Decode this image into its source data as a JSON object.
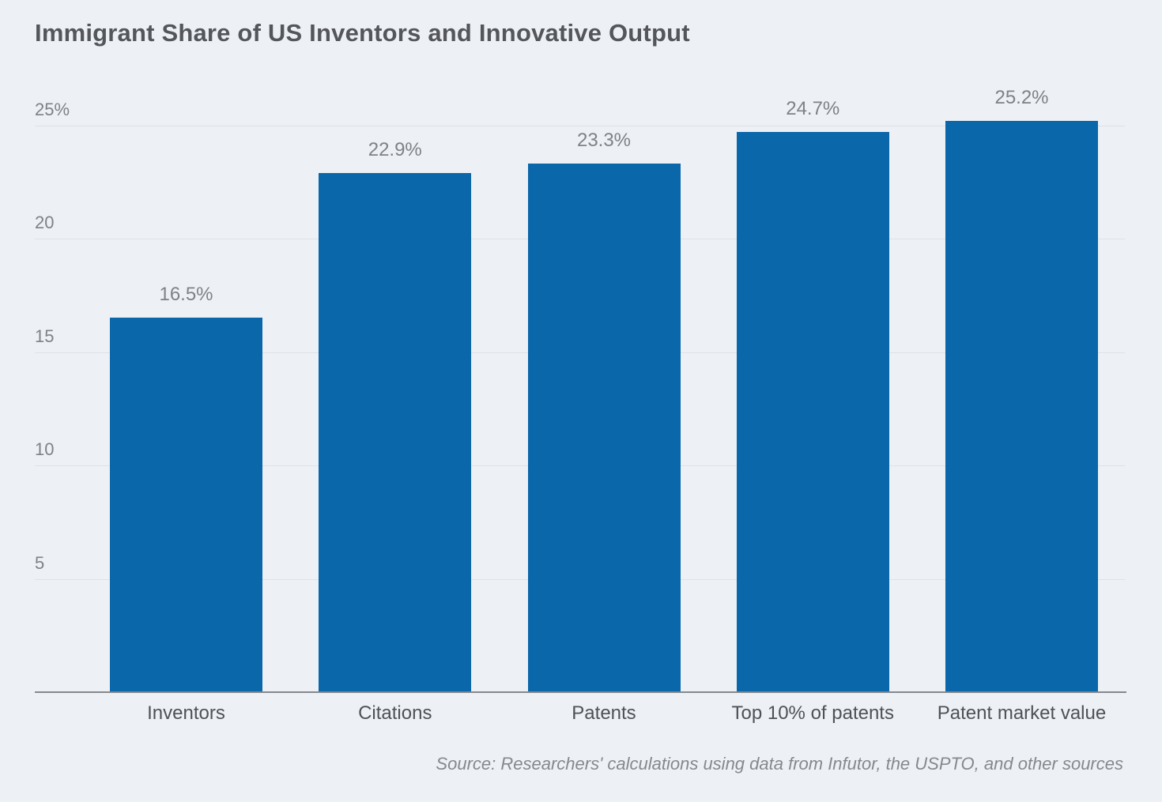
{
  "title": "Immigrant Share of US Inventors and Innovative Output",
  "source": "Source: Researchers' calculations using data from Infutor, the USPTO, and other sources",
  "chart_data": {
    "type": "bar",
    "title": "Immigrant Share of US Inventors and Innovative Output",
    "categories": [
      "Inventors",
      "Citations",
      "Patents",
      "Top 10% of patents",
      "Patent market value"
    ],
    "values": [
      16.5,
      22.9,
      23.3,
      24.7,
      25.2
    ],
    "value_labels": [
      "16.5%",
      "22.9%",
      "23.3%",
      "24.7%",
      "25.2%"
    ],
    "xlabel": "",
    "ylabel": "",
    "y_ticks": [
      5,
      10,
      15,
      20,
      25
    ],
    "y_tick_labels": [
      "5",
      "10",
      "15",
      "20",
      "25%"
    ],
    "ylim": [
      0,
      26
    ],
    "grid": true,
    "legend": "none",
    "source_note": "Source: Researchers' calculations using data from Infutor, the USPTO, and other sources"
  },
  "colors": {
    "background": "#EDF1F6",
    "bar": "#0967AA",
    "gridline": "#DCE2E8",
    "axis_line": "#85888C",
    "title_text": "#54565B",
    "tick_text": "#7E8287",
    "value_label_text": "#7E8287",
    "category_text": "#4E5156",
    "source_text": "#85888C"
  }
}
